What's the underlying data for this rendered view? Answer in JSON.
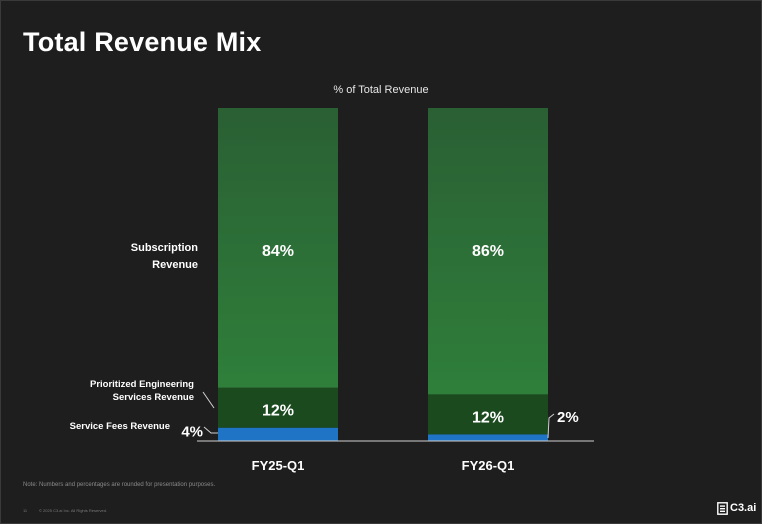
{
  "slide": {
    "title": "Total Revenue Mix",
    "footnote": "Note: Numbers and percentages are rounded for presentation purposes.",
    "page_number": "11",
    "copyright": "© 2025 C3.ai Inc. All Rights Reserved.",
    "brand": "C3.ai"
  },
  "colors": {
    "background": "#1e1e1e",
    "subscription": "#2f7f3a",
    "subscription_top": "#2a5f34",
    "prioritized_engineering": "#1b4a1f",
    "service_fees": "#1f74c6",
    "axis": "#d0d0d0",
    "text": "#ffffff"
  },
  "chart_data": {
    "type": "bar",
    "stacked": true,
    "title": "% of Total Revenue",
    "categories": [
      "FY25-Q1",
      "FY26-Q1"
    ],
    "ylim": [
      0,
      100
    ],
    "series": [
      {
        "name": "Service Fees Revenue",
        "values": [
          4,
          2
        ],
        "labels": [
          "4%",
          "2%"
        ]
      },
      {
        "name": "Prioritized Engineering Services Revenue",
        "values": [
          12,
          12
        ],
        "labels": [
          "12%",
          "12%"
        ]
      },
      {
        "name": "Subscription Revenue",
        "values": [
          84,
          86
        ],
        "labels": [
          "84%",
          "86%"
        ]
      }
    ],
    "series_labels": [
      {
        "series": 2,
        "lines": [
          "Subscription",
          "Revenue"
        ]
      },
      {
        "series": 1,
        "lines": [
          "Prioritized Engineering",
          "Services Revenue"
        ]
      },
      {
        "series": 0,
        "lines": [
          "Service Fees Revenue"
        ]
      }
    ]
  }
}
